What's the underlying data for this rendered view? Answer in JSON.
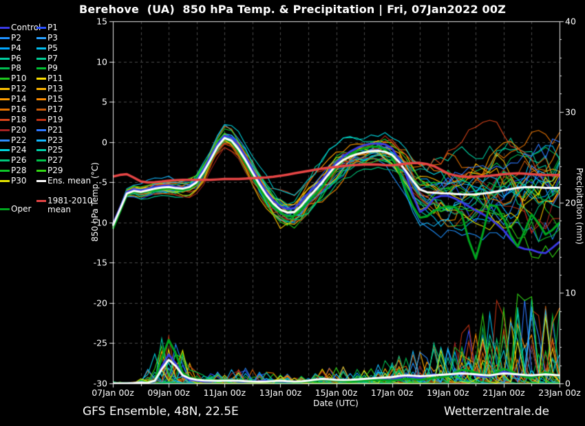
{
  "title": "Berehove  (UA)  850 hPa Temp. & Precipitation | Fri, 07Jan2022 00Z",
  "footer": {
    "left": "GFS Ensemble, 48N, 22.5E",
    "right": "Wetterzentrale.de"
  },
  "legend": {
    "col1": [
      {
        "label": "Control",
        "color": "#3a3ae6"
      },
      {
        "label": "P2",
        "color": "#1e90ff"
      },
      {
        "label": "P4",
        "color": "#00a8ff"
      },
      {
        "label": "P6",
        "color": "#00cfa0"
      },
      {
        "label": "P8",
        "color": "#00be50"
      },
      {
        "label": "P10",
        "color": "#1ec81e"
      },
      {
        "label": "P12",
        "color": "#ffc300"
      },
      {
        "label": "P14",
        "color": "#ff9c00"
      },
      {
        "label": "P16",
        "color": "#e67300"
      },
      {
        "label": "P18",
        "color": "#d9441a"
      },
      {
        "label": "P20",
        "color": "#a62121"
      },
      {
        "label": "P22",
        "color": "#2e8cff"
      },
      {
        "label": "P24",
        "color": "#00d2dc"
      },
      {
        "label": "P26",
        "color": "#00c87d"
      },
      {
        "label": "P28",
        "color": "#0fc828"
      },
      {
        "label": "P30",
        "color": "#e6e600"
      }
    ],
    "col2": [
      {
        "label": "P1",
        "color": "#2850ff"
      },
      {
        "label": "P3",
        "color": "#28a0ff"
      },
      {
        "label": "P5",
        "color": "#00bff0"
      },
      {
        "label": "P7",
        "color": "#00cf96"
      },
      {
        "label": "P9",
        "color": "#00c332"
      },
      {
        "label": "P11",
        "color": "#ffe100"
      },
      {
        "label": "P13",
        "color": "#ffb400"
      },
      {
        "label": "P15",
        "color": "#ff8c00"
      },
      {
        "label": "P17",
        "color": "#cc5c0a"
      },
      {
        "label": "P19",
        "color": "#c03214"
      },
      {
        "label": "P21",
        "color": "#2d78ff"
      },
      {
        "label": "P23",
        "color": "#14b9ff"
      },
      {
        "label": "P25",
        "color": "#00cda5"
      },
      {
        "label": "P27",
        "color": "#00c34b"
      },
      {
        "label": "P29",
        "color": "#32d714"
      },
      {
        "label": "Ens. mean",
        "color": "#ffffff"
      }
    ],
    "climate_entry": {
      "label_line1": "1981-2010",
      "label_line2": "mean",
      "color": "#e64545"
    },
    "oper_entry": {
      "label": "Oper",
      "color": "#00a51e"
    }
  },
  "chart_data": {
    "type": "line",
    "title": "Berehove (UA) 850 hPa Temp. & Precipitation | Fri, 07Jan2022 00Z",
    "xlabel": "Date (UTC)",
    "x_ticks": [
      {
        "label": "07Jan 00z",
        "day": 0
      },
      {
        "label": "09Jan 00z",
        "day": 2
      },
      {
        "label": "11Jan 00z",
        "day": 4
      },
      {
        "label": "13Jan 00z",
        "day": 6
      },
      {
        "label": "15Jan 00z",
        "day": 8
      },
      {
        "label": "17Jan 00z",
        "day": 10
      },
      {
        "label": "19Jan 00z",
        "day": 12
      },
      {
        "label": "21Jan 00z",
        "day": 14
      },
      {
        "label": "23Jan 00z",
        "day": 16
      }
    ],
    "left_axis": {
      "label": "850 hPa Temp. (°C)",
      "range": [
        -30,
        15
      ],
      "ticks": [
        {
          "label": "15",
          "value": 15
        },
        {
          "label": "10",
          "value": 10
        },
        {
          "label": "5",
          "value": 5
        },
        {
          "label": "0",
          "value": 0
        },
        {
          "label": "-5",
          "value": -5
        },
        {
          "label": "-10",
          "value": -10
        },
        {
          "label": "-15",
          "value": -15
        },
        {
          "label": "-20",
          "value": -20
        },
        {
          "label": "-25",
          "value": -25
        },
        {
          "label": "-30",
          "value": -30
        }
      ]
    },
    "right_axis": {
      "label": "Precipitation (mm)",
      "range": [
        0,
        40
      ],
      "ticks": [
        {
          "label": "40",
          "value": 40
        },
        {
          "label": "30",
          "value": 30
        },
        {
          "label": "20",
          "value": 20
        },
        {
          "label": "10",
          "value": 10
        },
        {
          "label": "0",
          "value": 0
        }
      ]
    },
    "grid": {
      "vertical_every_days": 1,
      "horizontal_every_degC": 5,
      "color": "#4b4b4b"
    },
    "time_days": [
      0,
      0.5,
      1,
      1.5,
      2,
      2.5,
      3,
      3.5,
      4,
      4.5,
      5,
      5.5,
      6,
      6.5,
      7,
      7.5,
      8,
      8.5,
      9,
      9.5,
      10,
      10.5,
      11,
      11.5,
      12,
      12.5,
      13,
      13.5,
      14,
      14.5,
      15,
      15.5,
      16
    ],
    "series": {
      "ens_mean_temp": [
        -10.4,
        -6.4,
        -6.2,
        -5.8,
        -5.6,
        -5.8,
        -5.0,
        -2.2,
        0.5,
        -0.9,
        -3.8,
        -6.6,
        -8.4,
        -8.7,
        -6.9,
        -5.0,
        -2.9,
        -1.8,
        -1.3,
        -1.1,
        -1.6,
        -3.6,
        -5.9,
        -6.3,
        -6.4,
        -6.5,
        -6.5,
        -6.3,
        -6.0,
        -5.7,
        -5.6,
        -5.7,
        -5.7
      ],
      "control_temp": [
        -10.2,
        -6.2,
        -6.0,
        -5.6,
        -5.4,
        -5.7,
        -4.8,
        -1.8,
        0.8,
        -0.4,
        -3.4,
        -6.2,
        -8.0,
        -8.2,
        -6.4,
        -4.6,
        -2.6,
        -1.2,
        -0.4,
        -0.2,
        -0.8,
        -4.0,
        -8.7,
        -7.0,
        -6.7,
        -7.5,
        -8.5,
        -9.5,
        -11.0,
        -13.0,
        -13.4,
        -13.8,
        -12.4
      ],
      "oper_temp": [
        -10.8,
        -6.6,
        -6.3,
        -6.0,
        -5.8,
        -6.0,
        -5.2,
        -2.4,
        0.4,
        -1.2,
        -4.2,
        -7.0,
        -8.8,
        -9.2,
        -7.4,
        -5.6,
        -3.2,
        -1.6,
        -0.8,
        -0.6,
        -1.8,
        -6.0,
        -9.4,
        -8.6,
        -8.0,
        -9.0,
        -14.5,
        -7.8,
        -9.5,
        -13.0,
        -9.0,
        -11.5,
        -10.0
      ],
      "climate_mean_temp": [
        -4.3,
        -4.0,
        -4.9,
        -5.0,
        -4.8,
        -4.7,
        -4.7,
        -4.7,
        -4.6,
        -4.6,
        -4.5,
        -4.4,
        -4.2,
        -3.9,
        -3.6,
        -3.3,
        -3.1,
        -2.9,
        -2.8,
        -2.8,
        -2.9,
        -2.7,
        -2.6,
        -3.0,
        -3.9,
        -4.3,
        -4.3,
        -4.2,
        -4.0,
        -3.9,
        -4.0,
        -4.1,
        -4.1
      ],
      "oper_precip": [
        0,
        0,
        0,
        0.3,
        4.8,
        1.2,
        0.5,
        0.3,
        0.4,
        0.3,
        0.2,
        0.2,
        0.3,
        0.2,
        0.2,
        0.4,
        0.3,
        0.2,
        0.3,
        0.4,
        0.3,
        0.5,
        0.4,
        0.6,
        0.8,
        1.5,
        1.2,
        0.8,
        1.6,
        1.0,
        0.6,
        1.2,
        0.8
      ],
      "ens_mean_precip": [
        0,
        0,
        0.1,
        0.3,
        2.6,
        0.9,
        0.4,
        0.3,
        0.3,
        0.3,
        0.2,
        0.2,
        0.3,
        0.2,
        0.3,
        0.5,
        0.4,
        0.4,
        0.5,
        0.6,
        0.7,
        0.9,
        0.8,
        0.9,
        1.0,
        1.1,
        1.0,
        0.9,
        1.1,
        1.0,
        0.9,
        1.0,
        0.9
      ],
      "control_precip": [
        0,
        0,
        0.1,
        0.2,
        3.2,
        0.8,
        0.3,
        0.2,
        0.4,
        0.2,
        0.2,
        0.3,
        0.2,
        0.2,
        0.2,
        0.4,
        0.3,
        0.3,
        0.4,
        0.5,
        0.4,
        0.8,
        0.6,
        1.0,
        0.8,
        1.2,
        0.9,
        0.7,
        1.3,
        0.9,
        0.7,
        1.1,
        0.8
      ]
    },
    "members": {
      "count": 30,
      "note": "30 perturbation members P1-P30 drawn as thin lines scattered about the ensemble mean; spread grows with lead time; precipitation spikes cluster near 09Jan and after 17Jan",
      "temp_spread_daily": [
        0.35,
        0.8,
        1.0,
        1.3,
        1.4,
        1.8,
        2.6,
        2.4,
        2.2,
        1.7,
        2.2,
        3.3,
        4.2,
        5.2,
        6.2,
        6.8,
        7.4
      ],
      "precip_envelope_daily": [
        0.2,
        0.5,
        5.0,
        1.1,
        1.3,
        1.5,
        1.0,
        0.8,
        1.9,
        1.3,
        2.7,
        3.8,
        4.2,
        6.3,
        8.6,
        8.8,
        7.6
      ],
      "generation": {
        "member_seed_base": 1017,
        "member_seed_step": 77,
        "precip_seed_base": 5400,
        "precip_seed_step": 131,
        "ar_persistence": 0.58,
        "ar_innovation": 1.05,
        "jitter": 0.18,
        "precip_threshold": 0.68,
        "precip_power": 1.5,
        "precip_gain": 1.15,
        "precip_decay": 0.3
      }
    },
    "line_styles": {
      "member_width": 1.1,
      "control_width": 2.8,
      "oper_width": 3.0,
      "mean_width": 3.0,
      "climate_width": 3.5,
      "frame_color": "#e8e8e8"
    }
  }
}
